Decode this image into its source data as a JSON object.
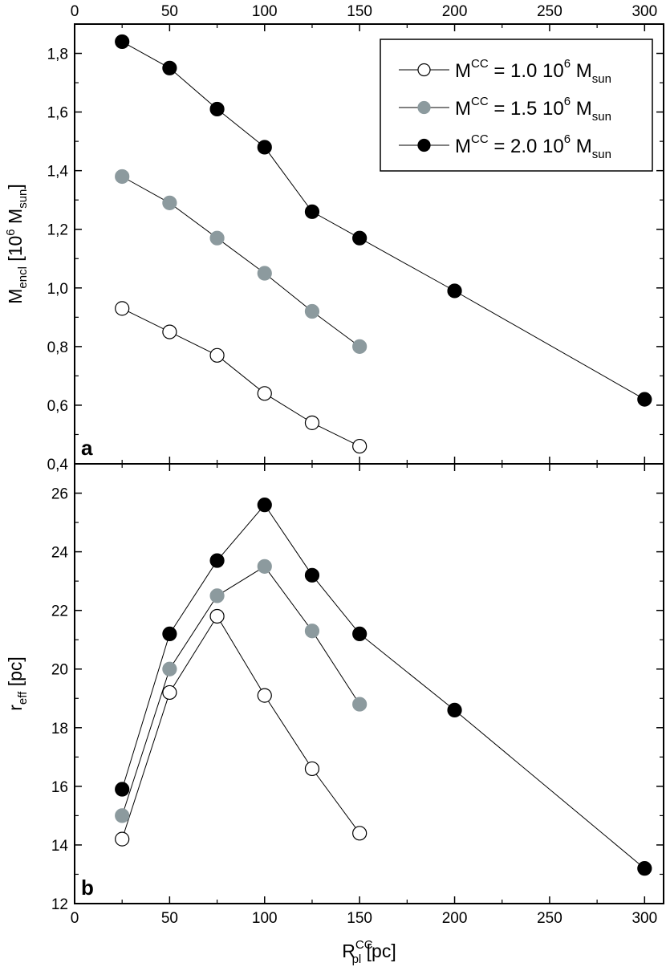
{
  "chart_data": {
    "type": "line",
    "x_axis": {
      "label_main": "R",
      "label_sub": "pl",
      "label_sup": "CC",
      "label_unit": " [pc]",
      "range": [
        0,
        310
      ],
      "ticks": [
        0,
        50,
        100,
        150,
        200,
        250,
        300
      ],
      "tick_labels": [
        "0",
        "50",
        "100",
        "150",
        "200",
        "250",
        "300"
      ]
    },
    "legend": {
      "entries": [
        {
          "series": "m10",
          "pre": "M",
          "sup": "CC",
          "mid": " = 1.0 10",
          "exp": "6",
          "unit": " M",
          "unit_sub": "sun"
        },
        {
          "series": "m15",
          "pre": "M",
          "sup": "CC",
          "mid": " = 1.5 10",
          "exp": "6",
          "unit": " M",
          "unit_sub": "sun"
        },
        {
          "series": "m20",
          "pre": "M",
          "sup": "CC",
          "mid": " = 2.0 10",
          "exp": "6",
          "unit": " M",
          "unit_sub": "sun"
        }
      ],
      "location": "top-right of panel a"
    },
    "series_styles": {
      "m10": {
        "fill": "#ffffff",
        "stroke": "#000000"
      },
      "m15": {
        "fill": "#8c9a9e",
        "stroke": "#8c9a9e"
      },
      "m20": {
        "fill": "#000000",
        "stroke": "#000000"
      }
    },
    "panels": [
      {
        "id": "a",
        "tag": "a",
        "ylabel_main": "M",
        "ylabel_sub": "encl",
        "ylabel_rest": " [10",
        "ylabel_exp": "6",
        "ylabel_unit": " M",
        "ylabel_unit_sub": "sun",
        "ylabel_close": "]",
        "ylim": [
          0.4,
          1.9
        ],
        "yticks": [
          0.4,
          0.6,
          0.8,
          1.0,
          1.2,
          1.4,
          1.6,
          1.8
        ],
        "ytick_labels": [
          "0,4",
          "0,6",
          "0,8",
          "1,0",
          "1,2",
          "1,4",
          "1,6",
          "1,8"
        ],
        "series": [
          {
            "name": "m10",
            "x": [
              25,
              50,
              75,
              100,
              125,
              150
            ],
            "y": [
              0.93,
              0.85,
              0.77,
              0.64,
              0.54,
              0.46
            ]
          },
          {
            "name": "m15",
            "x": [
              25,
              50,
              75,
              100,
              125,
              150
            ],
            "y": [
              1.38,
              1.29,
              1.17,
              1.05,
              0.92,
              0.8
            ]
          },
          {
            "name": "m20",
            "x": [
              25,
              50,
              75,
              100,
              125,
              150,
              200,
              300
            ],
            "y": [
              1.84,
              1.75,
              1.61,
              1.48,
              1.26,
              1.17,
              0.99,
              0.62
            ]
          }
        ]
      },
      {
        "id": "b",
        "tag": "b",
        "ylabel_main": "r",
        "ylabel_sub": "eff",
        "ylabel_rest": " [pc]",
        "ylim": [
          12,
          27
        ],
        "yticks": [
          12,
          14,
          16,
          18,
          20,
          22,
          24,
          26
        ],
        "ytick_labels": [
          "12",
          "14",
          "16",
          "18",
          "20",
          "22",
          "24",
          "26"
        ],
        "series": [
          {
            "name": "m10",
            "x": [
              25,
              50,
              75,
              100,
              125,
              150
            ],
            "y": [
              14.2,
              19.2,
              21.8,
              19.1,
              16.6,
              14.4
            ]
          },
          {
            "name": "m15",
            "x": [
              25,
              50,
              75,
              100,
              125,
              150
            ],
            "y": [
              15.0,
              20.0,
              22.5,
              23.5,
              21.3,
              18.8
            ]
          },
          {
            "name": "m20",
            "x": [
              25,
              50,
              75,
              100,
              125,
              150,
              200,
              300
            ],
            "y": [
              15.9,
              21.2,
              23.7,
              25.6,
              23.2,
              21.2,
              18.6,
              13.2
            ]
          }
        ]
      }
    ]
  }
}
